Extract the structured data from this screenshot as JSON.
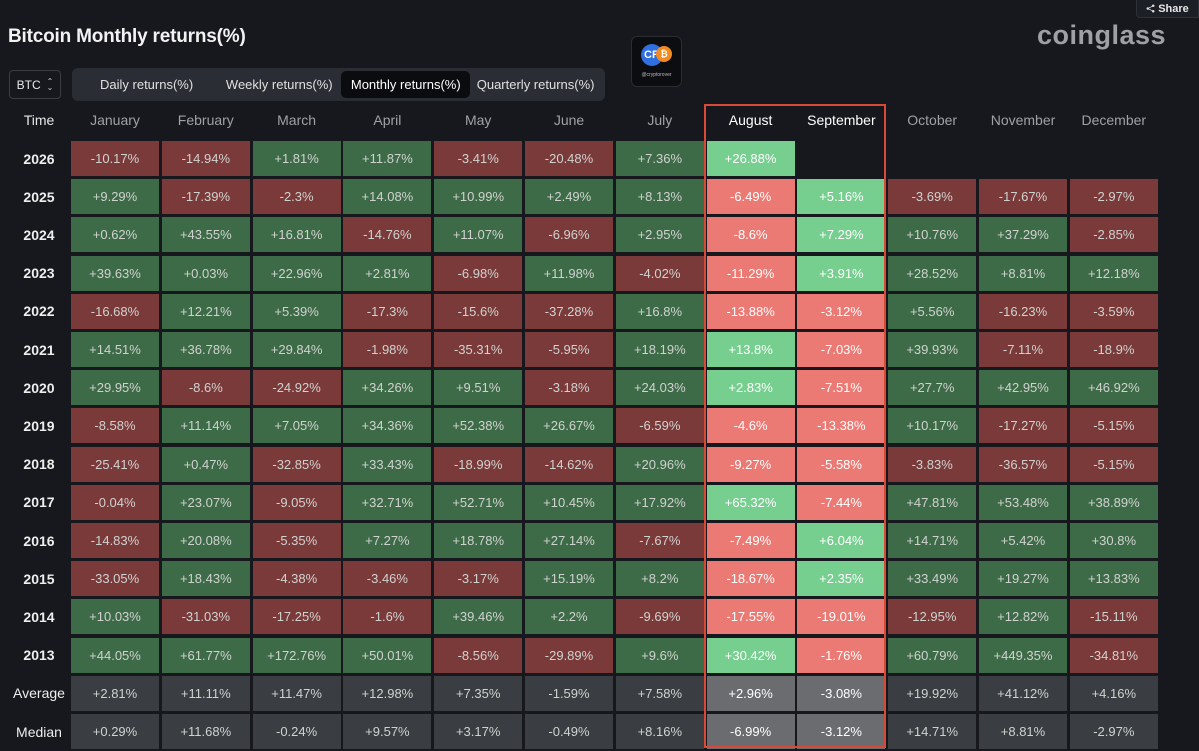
{
  "header": {
    "title": "Bitcoin Monthly returns(%)",
    "brand": "coinglass",
    "share_label": "Share",
    "asset": "BTC",
    "watermark": "@cryptorover"
  },
  "tabs": [
    {
      "label": "Daily returns(%)",
      "active": false
    },
    {
      "label": "Weekly returns(%)",
      "active": false
    },
    {
      "label": "Monthly returns(%)",
      "active": true
    },
    {
      "label": "Quarterly returns(%)",
      "active": false
    }
  ],
  "table": {
    "time_label": "Time",
    "columns": [
      "January",
      "February",
      "March",
      "April",
      "May",
      "June",
      "July",
      "August",
      "September",
      "October",
      "November",
      "December"
    ],
    "highlight_columns": [
      "August",
      "September"
    ],
    "rows": [
      {
        "label": "2026",
        "cells": [
          "-10.17%",
          "-14.94%",
          "+1.81%",
          "+11.87%",
          "-3.41%",
          "-20.48%",
          "+7.36%",
          "+26.88%",
          "",
          "",
          "",
          ""
        ]
      },
      {
        "label": "2025",
        "cells": [
          "+9.29%",
          "-17.39%",
          "-2.3%",
          "+14.08%",
          "+10.99%",
          "+2.49%",
          "+8.13%",
          "-6.49%",
          "+5.16%",
          "-3.69%",
          "-17.67%",
          "-2.97%"
        ]
      },
      {
        "label": "2024",
        "cells": [
          "+0.62%",
          "+43.55%",
          "+16.81%",
          "-14.76%",
          "+11.07%",
          "-6.96%",
          "+2.95%",
          "-8.6%",
          "+7.29%",
          "+10.76%",
          "+37.29%",
          "-2.85%"
        ]
      },
      {
        "label": "2023",
        "cells": [
          "+39.63%",
          "+0.03%",
          "+22.96%",
          "+2.81%",
          "-6.98%",
          "+11.98%",
          "-4.02%",
          "-11.29%",
          "+3.91%",
          "+28.52%",
          "+8.81%",
          "+12.18%"
        ]
      },
      {
        "label": "2022",
        "cells": [
          "-16.68%",
          "+12.21%",
          "+5.39%",
          "-17.3%",
          "-15.6%",
          "-37.28%",
          "+16.8%",
          "-13.88%",
          "-3.12%",
          "+5.56%",
          "-16.23%",
          "-3.59%"
        ]
      },
      {
        "label": "2021",
        "cells": [
          "+14.51%",
          "+36.78%",
          "+29.84%",
          "-1.98%",
          "-35.31%",
          "-5.95%",
          "+18.19%",
          "+13.8%",
          "-7.03%",
          "+39.93%",
          "-7.11%",
          "-18.9%"
        ]
      },
      {
        "label": "2020",
        "cells": [
          "+29.95%",
          "-8.6%",
          "-24.92%",
          "+34.26%",
          "+9.51%",
          "-3.18%",
          "+24.03%",
          "+2.83%",
          "-7.51%",
          "+27.7%",
          "+42.95%",
          "+46.92%"
        ]
      },
      {
        "label": "2019",
        "cells": [
          "-8.58%",
          "+11.14%",
          "+7.05%",
          "+34.36%",
          "+52.38%",
          "+26.67%",
          "-6.59%",
          "-4.6%",
          "-13.38%",
          "+10.17%",
          "-17.27%",
          "-5.15%"
        ]
      },
      {
        "label": "2018",
        "cells": [
          "-25.41%",
          "+0.47%",
          "-32.85%",
          "+33.43%",
          "-18.99%",
          "-14.62%",
          "+20.96%",
          "-9.27%",
          "-5.58%",
          "-3.83%",
          "-36.57%",
          "-5.15%"
        ]
      },
      {
        "label": "2017",
        "cells": [
          "-0.04%",
          "+23.07%",
          "-9.05%",
          "+32.71%",
          "+52.71%",
          "+10.45%",
          "+17.92%",
          "+65.32%",
          "-7.44%",
          "+47.81%",
          "+53.48%",
          "+38.89%"
        ]
      },
      {
        "label": "2016",
        "cells": [
          "-14.83%",
          "+20.08%",
          "-5.35%",
          "+7.27%",
          "+18.78%",
          "+27.14%",
          "-7.67%",
          "-7.49%",
          "+6.04%",
          "+14.71%",
          "+5.42%",
          "+30.8%"
        ]
      },
      {
        "label": "2015",
        "cells": [
          "-33.05%",
          "+18.43%",
          "-4.38%",
          "-3.46%",
          "-3.17%",
          "+15.19%",
          "+8.2%",
          "-18.67%",
          "+2.35%",
          "+33.49%",
          "+19.27%",
          "+13.83%"
        ]
      },
      {
        "label": "2014",
        "cells": [
          "+10.03%",
          "-31.03%",
          "-17.25%",
          "-1.6%",
          "+39.46%",
          "+2.2%",
          "-9.69%",
          "-17.55%",
          "-19.01%",
          "-12.95%",
          "+12.82%",
          "-15.11%"
        ]
      },
      {
        "label": "2013",
        "cells": [
          "+44.05%",
          "+61.77%",
          "+172.76%",
          "+50.01%",
          "-8.56%",
          "-29.89%",
          "+9.6%",
          "+30.42%",
          "-1.76%",
          "+60.79%",
          "+449.35%",
          "-34.81%"
        ]
      }
    ],
    "summary_rows": [
      {
        "label": "Average",
        "cells": [
          "+2.81%",
          "+11.11%",
          "+11.47%",
          "+12.98%",
          "+7.35%",
          "-1.59%",
          "+7.58%",
          "+2.96%",
          "-3.08%",
          "+19.92%",
          "+41.12%",
          "+4.16%"
        ]
      },
      {
        "label": "Median",
        "cells": [
          "+0.29%",
          "+11.68%",
          "-0.24%",
          "+9.57%",
          "+3.17%",
          "-0.49%",
          "+8.16%",
          "-6.99%",
          "-3.12%",
          "+14.71%",
          "+8.81%",
          "-2.97%"
        ]
      }
    ]
  },
  "colors": {
    "background": "#16181d",
    "positive": "#3e6b47",
    "negative": "#7b3a3a",
    "positive_highlight": "#76cf8f",
    "negative_highlight": "#ea7a73",
    "summary": "#3a3d42",
    "summary_highlight": "#6a6c70",
    "highlight_frame": "#d84a35"
  }
}
